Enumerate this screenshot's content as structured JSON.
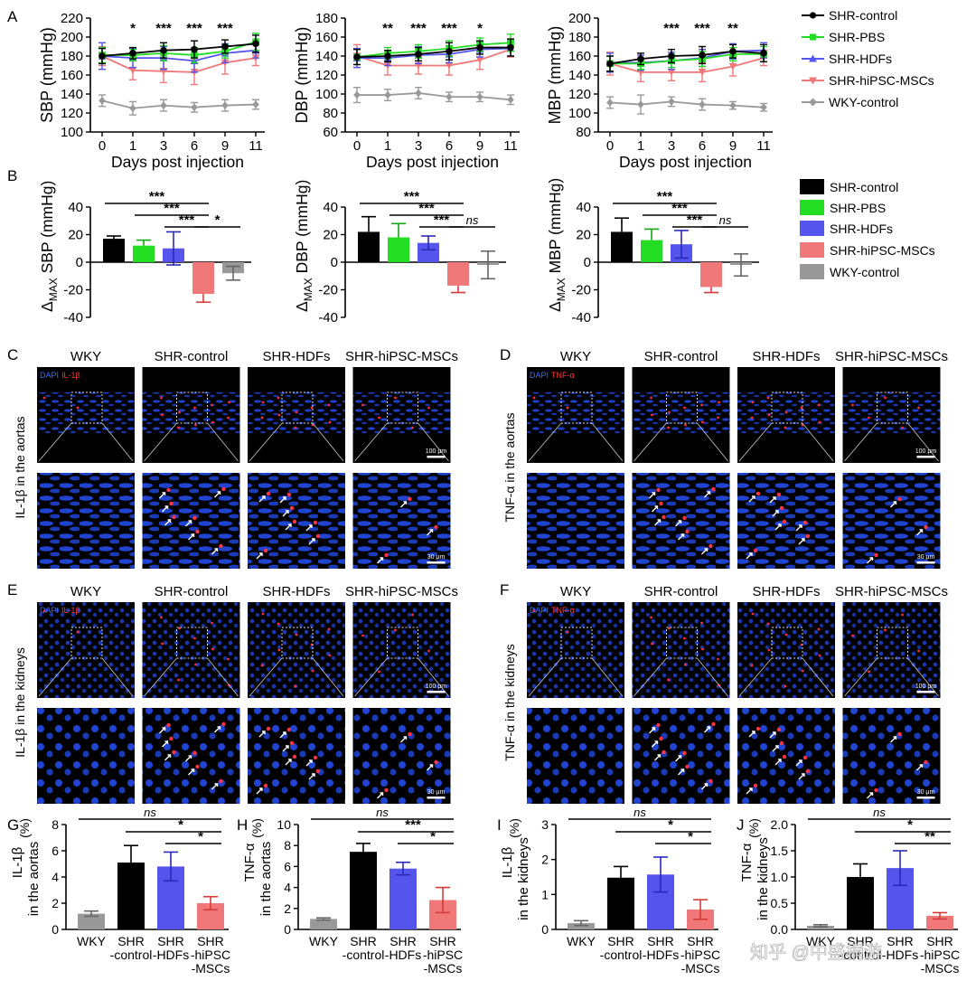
{
  "colors": {
    "shr_control": "#000000",
    "shr_pbs": "#22dd22",
    "shr_hdfs": "#5555ee",
    "shr_hipsc": "#f07878",
    "wky": "#999999"
  },
  "panel_letters": [
    "A",
    "B",
    "C",
    "D",
    "E",
    "F",
    "G",
    "H",
    "I",
    "J"
  ],
  "legend_a": [
    "SHR-control",
    "SHR-PBS",
    "SHR-HDFs",
    "SHR-hiPSC-MSCs",
    "WKY-control"
  ],
  "legend_b": [
    "SHR-control",
    "SHR-PBS",
    "SHR-HDFs",
    "SHR-hiPSC-MSCs",
    "WKY-control"
  ],
  "micro_columns": [
    "WKY",
    "SHR-control",
    "SHR-HDFs",
    "SHR-hiPSC-MSCs"
  ],
  "micro_side": {
    "C": "IL-1β in the aortas",
    "D": "TNF-α in the aortas",
    "E": "IL-1β in the kidneys",
    "F": "TNF-α in the kidneys"
  },
  "stain_labels": {
    "dapi": "DAPI",
    "il1b": "IL-1β",
    "tnfa": "TNF-α"
  },
  "scalebars": {
    "top": "100 μm",
    "bottom": "30 μm"
  },
  "watermark": "知乎 @中盛桐游",
  "chart_data": [
    {
      "id": "A1",
      "type": "line",
      "ylabel": "SBP (mmHg)",
      "xlabel": "Days post injection",
      "x": [
        "0",
        "1",
        "3",
        "6",
        "9",
        "11"
      ],
      "ylim": [
        100,
        220
      ],
      "yticks": [
        100,
        120,
        140,
        160,
        180,
        200,
        220
      ],
      "series": [
        {
          "name": "SHR-control",
          "key": "shr_control",
          "marker": "circle",
          "values": [
            180,
            183,
            186,
            187,
            190,
            193
          ],
          "err": [
            8,
            6,
            8,
            9,
            7,
            9
          ]
        },
        {
          "name": "SHR-PBS",
          "key": "shr_pbs",
          "marker": "square",
          "values": [
            181,
            181,
            183,
            181,
            185,
            195
          ],
          "err": [
            8,
            6,
            8,
            8,
            7,
            9
          ]
        },
        {
          "name": "SHR-HDFs",
          "key": "shr_hdfs",
          "marker": "triangle",
          "values": [
            180,
            178,
            178,
            175,
            183,
            186
          ],
          "err": [
            14,
            10,
            12,
            12,
            10,
            8
          ]
        },
        {
          "name": "SHR-hiPSC-MSCs",
          "key": "shr_hipsc",
          "marker": "triangle-down",
          "values": [
            180,
            165,
            164,
            163,
            173,
            178
          ],
          "err": [
            10,
            10,
            12,
            13,
            12,
            8
          ]
        },
        {
          "name": "WKY-control",
          "key": "wky",
          "marker": "diamond",
          "values": [
            133,
            125,
            128,
            126,
            128,
            129
          ],
          "err": [
            6,
            7,
            6,
            5,
            6,
            5
          ]
        }
      ],
      "sig": [
        {
          "x": "1",
          "label": "*"
        },
        {
          "x": "3",
          "label": "***"
        },
        {
          "x": "6",
          "label": "***"
        },
        {
          "x": "9",
          "label": "***"
        }
      ]
    },
    {
      "id": "A2",
      "type": "line",
      "ylabel": "DBP (mmHg)",
      "xlabel": "Days post injection",
      "x": [
        "0",
        "1",
        "3",
        "6",
        "9",
        "11"
      ],
      "ylim": [
        60,
        180
      ],
      "yticks": [
        60,
        80,
        100,
        120,
        140,
        160,
        180
      ],
      "series": [
        {
          "name": "SHR-control",
          "key": "shr_control",
          "marker": "circle",
          "values": [
            139,
            140,
            142,
            145,
            149,
            149
          ],
          "err": [
            8,
            6,
            7,
            9,
            7,
            9
          ]
        },
        {
          "name": "SHR-PBS",
          "key": "shr_pbs",
          "marker": "square",
          "values": [
            139,
            143,
            145,
            148,
            152,
            154
          ],
          "err": [
            8,
            6,
            7,
            8,
            7,
            9
          ]
        },
        {
          "name": "SHR-HDFs",
          "key": "shr_hdfs",
          "marker": "triangle",
          "values": [
            138,
            138,
            141,
            142,
            147,
            148
          ],
          "err": [
            10,
            8,
            9,
            9,
            8,
            8
          ]
        },
        {
          "name": "SHR-hiPSC-MSCs",
          "key": "shr_hipsc",
          "marker": "triangle-down",
          "values": [
            140,
            130,
            130,
            130,
            136,
            147
          ],
          "err": [
            12,
            10,
            9,
            10,
            10,
            8
          ]
        },
        {
          "name": "WKY-control",
          "key": "wky",
          "marker": "diamond",
          "values": [
            99,
            99,
            101,
            97,
            97,
            94
          ],
          "err": [
            8,
            6,
            6,
            5,
            5,
            5
          ]
        }
      ],
      "sig": [
        {
          "x": "1",
          "label": "**"
        },
        {
          "x": "3",
          "label": "***"
        },
        {
          "x": "6",
          "label": "***"
        },
        {
          "x": "9",
          "label": "*"
        }
      ]
    },
    {
      "id": "A3",
      "type": "line",
      "ylabel": "MBP (mmHg)",
      "xlabel": "Days post injection",
      "x": [
        "0",
        "1",
        "3",
        "6",
        "9",
        "11"
      ],
      "ylim": [
        80,
        200
      ],
      "yticks": [
        80,
        100,
        120,
        140,
        160,
        180,
        200
      ],
      "series": [
        {
          "name": "SHR-control",
          "key": "shr_control",
          "marker": "circle",
          "values": [
            152,
            157,
            160,
            161,
            165,
            163
          ],
          "err": [
            8,
            6,
            7,
            9,
            7,
            9
          ]
        },
        {
          "name": "SHR-PBS",
          "key": "shr_pbs",
          "marker": "square",
          "values": [
            152,
            152,
            155,
            157,
            162,
            162
          ],
          "err": [
            8,
            6,
            7,
            8,
            7,
            8
          ]
        },
        {
          "name": "SHR-HDFs",
          "key": "shr_hdfs",
          "marker": "triangle",
          "values": [
            153,
            153,
            155,
            158,
            165,
            166
          ],
          "err": [
            10,
            8,
            9,
            9,
            8,
            8
          ]
        },
        {
          "name": "SHR-hiPSC-MSCs",
          "key": "shr_hipsc",
          "marker": "triangle-down",
          "values": [
            152,
            143,
            143,
            143,
            149,
            158
          ],
          "err": [
            12,
            10,
            9,
            10,
            10,
            8
          ]
        },
        {
          "name": "WKY-control",
          "key": "wky",
          "marker": "diamond",
          "values": [
            111,
            109,
            112,
            109,
            108,
            106
          ],
          "err": [
            6,
            10,
            5,
            6,
            4,
            4
          ]
        }
      ],
      "sig": [
        {
          "x": "3",
          "label": "***"
        },
        {
          "x": "6",
          "label": "***"
        },
        {
          "x": "9",
          "label": "**"
        }
      ]
    },
    {
      "id": "B1",
      "type": "bar",
      "ylabel_prefix": "Δ",
      "ylabel_sub": "MAX",
      "ylabel_main": " SBP (mmHg)",
      "ylim": [
        -40,
        40
      ],
      "yticks": [
        -40,
        -20,
        0,
        20,
        40
      ],
      "groups": [
        {
          "name": "SHR-control",
          "key": "shr_control",
          "value": 17,
          "err": 2
        },
        {
          "name": "SHR-PBS",
          "key": "shr_pbs",
          "value": 12,
          "err": 4
        },
        {
          "name": "SHR-HDFs",
          "key": "shr_hdfs",
          "value": 10,
          "err": 12
        },
        {
          "name": "SHR-hiPSC-MSCs",
          "key": "shr_hipsc",
          "value": -23,
          "err": 6
        },
        {
          "name": "WKY-control",
          "key": "wky",
          "value": -8,
          "err": 5
        }
      ],
      "sig": [
        {
          "from": 0,
          "to": 3,
          "label": "***"
        },
        {
          "from": 1,
          "to": 3,
          "label": "***"
        },
        {
          "from": 2,
          "to": 3,
          "label": "***"
        },
        {
          "from": 3,
          "to": 4,
          "label": "*"
        }
      ]
    },
    {
      "id": "B2",
      "type": "bar",
      "ylabel_prefix": "Δ",
      "ylabel_sub": "MAX",
      "ylabel_main": " DBP (mmHg)",
      "ylim": [
        -40,
        40
      ],
      "yticks": [
        -40,
        -20,
        0,
        20,
        40
      ],
      "groups": [
        {
          "name": "SHR-control",
          "key": "shr_control",
          "value": 22,
          "err": 11
        },
        {
          "name": "SHR-PBS",
          "key": "shr_pbs",
          "value": 18,
          "err": 10
        },
        {
          "name": "SHR-HDFs",
          "key": "shr_hdfs",
          "value": 14,
          "err": 5
        },
        {
          "name": "SHR-hiPSC-MSCs",
          "key": "shr_hipsc",
          "value": -17,
          "err": 5
        },
        {
          "name": "WKY-control",
          "key": "wky",
          "value": -2,
          "err": 10
        }
      ],
      "sig": [
        {
          "from": 0,
          "to": 3,
          "label": "***"
        },
        {
          "from": 1,
          "to": 3,
          "label": "***"
        },
        {
          "from": 2,
          "to": 3,
          "label": "***"
        },
        {
          "from": 3,
          "to": 4,
          "label": "ns"
        }
      ]
    },
    {
      "id": "B3",
      "type": "bar",
      "ylabel_prefix": "Δ",
      "ylabel_sub": "MAX",
      "ylabel_main": " MBP (mmHg)",
      "ylim": [
        -40,
        40
      ],
      "yticks": [
        -40,
        -20,
        0,
        20,
        40
      ],
      "groups": [
        {
          "name": "SHR-control",
          "key": "shr_control",
          "value": 22,
          "err": 10
        },
        {
          "name": "SHR-PBS",
          "key": "shr_pbs",
          "value": 16,
          "err": 8
        },
        {
          "name": "SHR-HDFs",
          "key": "shr_hdfs",
          "value": 13,
          "err": 10
        },
        {
          "name": "SHR-hiPSC-MSCs",
          "key": "shr_hipsc",
          "value": -18,
          "err": 4
        },
        {
          "name": "WKY-control",
          "key": "wky",
          "value": -2,
          "err": 8
        }
      ],
      "sig": [
        {
          "from": 0,
          "to": 3,
          "label": "***"
        },
        {
          "from": 1,
          "to": 3,
          "label": "***"
        },
        {
          "from": 2,
          "to": 3,
          "label": "***"
        },
        {
          "from": 3,
          "to": 4,
          "label": "ns"
        }
      ]
    },
    {
      "id": "G",
      "type": "bar",
      "ylabel_top": "IL-1β",
      "ylabel_bottom": "in the aortas",
      "unit": "(%)",
      "ylim": [
        0,
        8
      ],
      "yticks": [
        0,
        2,
        4,
        6,
        8
      ],
      "tick_fmt": "int",
      "categories": [
        "WKY",
        "SHR\n-control",
        "SHR\n-HDFs",
        "SHR\n-hiPSC\n-MSCs"
      ],
      "keys": [
        "wky",
        "shr_control",
        "shr_hdfs",
        "shr_hipsc"
      ],
      "values": [
        1.2,
        5.1,
        4.8,
        2.0
      ],
      "err": [
        0.2,
        1.3,
        1.1,
        0.5
      ],
      "sig": [
        {
          "from": 0,
          "to": 3,
          "label": "ns"
        },
        {
          "from": 1,
          "to": 3,
          "label": "*"
        },
        {
          "from": 2,
          "to": 3,
          "label": "*"
        }
      ]
    },
    {
      "id": "H",
      "type": "bar",
      "ylabel_top": "TNF-α",
      "ylabel_bottom": "in the aortas",
      "unit": "(%)",
      "ylim": [
        0,
        10
      ],
      "yticks": [
        0,
        2,
        4,
        6,
        8,
        10
      ],
      "tick_fmt": "int",
      "categories": [
        "WKY",
        "SHR\n-control",
        "SHR\n-HDFs",
        "SHR\n-hiPSC\n-MSCs"
      ],
      "keys": [
        "wky",
        "shr_control",
        "shr_hdfs",
        "shr_hipsc"
      ],
      "values": [
        1.0,
        7.4,
        5.8,
        2.8
      ],
      "err": [
        0.1,
        0.8,
        0.6,
        1.2
      ],
      "sig": [
        {
          "from": 0,
          "to": 3,
          "label": "ns"
        },
        {
          "from": 1,
          "to": 3,
          "label": "***"
        },
        {
          "from": 2,
          "to": 3,
          "label": "*"
        }
      ]
    },
    {
      "id": "I",
      "type": "bar",
      "ylabel_top": "IL-1β",
      "ylabel_bottom": "in the kidneys",
      "unit": "(%)",
      "ylim": [
        0,
        3
      ],
      "yticks": [
        0,
        1,
        2,
        3
      ],
      "tick_fmt": "int",
      "categories": [
        "WKY",
        "SHR\n-control",
        "SHR\n-HDFs",
        "SHR\n-hiPSC\n-MSCs"
      ],
      "keys": [
        "wky",
        "shr_control",
        "shr_hdfs",
        "shr_hipsc"
      ],
      "values": [
        0.18,
        1.48,
        1.57,
        0.57
      ],
      "err": [
        0.07,
        0.32,
        0.5,
        0.28
      ],
      "sig": [
        {
          "from": 0,
          "to": 3,
          "label": "ns"
        },
        {
          "from": 1,
          "to": 3,
          "label": "*"
        },
        {
          "from": 2,
          "to": 3,
          "label": "*"
        }
      ]
    },
    {
      "id": "J",
      "type": "bar",
      "ylabel_top": "TNF-α",
      "ylabel_bottom": "in the kidneys",
      "unit": "(%)",
      "ylim": [
        0,
        2
      ],
      "yticks": [
        0,
        0.5,
        1,
        1.5,
        2
      ],
      "tick_fmt": "1dp",
      "categories": [
        "WKY",
        "SHR\n-control",
        "SHR\n-HDFs",
        "SHR\n-hiPSC\n-MSCs"
      ],
      "keys": [
        "wky",
        "shr_control",
        "shr_hdfs",
        "shr_hipsc"
      ],
      "values": [
        0.07,
        1.0,
        1.17,
        0.26
      ],
      "err": [
        0.02,
        0.25,
        0.33,
        0.06
      ],
      "sig": [
        {
          "from": 0,
          "to": 3,
          "label": "ns"
        },
        {
          "from": 1,
          "to": 3,
          "label": "*"
        },
        {
          "from": 2,
          "to": 3,
          "label": "**"
        }
      ]
    }
  ]
}
